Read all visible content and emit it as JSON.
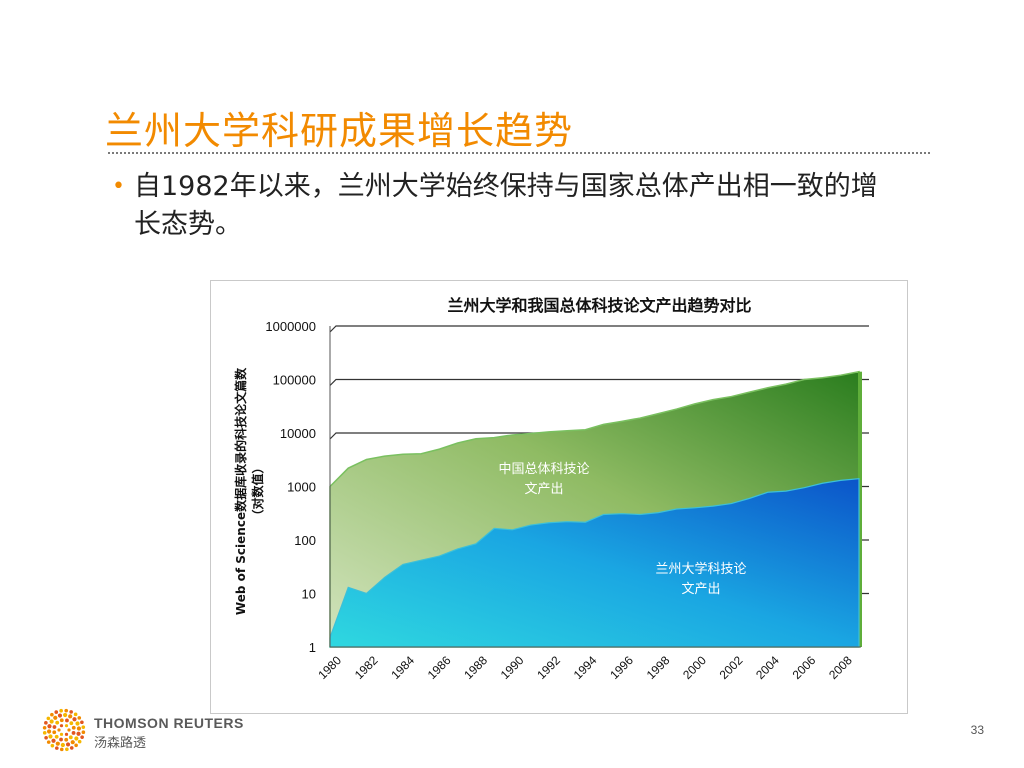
{
  "slide": {
    "title": "兰州大学科研成果增长趋势",
    "bullet_marker": "•",
    "bullet_text": "自1982年以来，兰州大学始终保持与国家总体产出相一致的增长态势。",
    "page_number": "33"
  },
  "logo": {
    "name_en": "THOMSON REUTERS",
    "name_cn": "汤森路透",
    "colors": [
      "#f28a00",
      "#e2561f",
      "#f5b700"
    ]
  },
  "chart_data": {
    "type": "area",
    "title": "兰州大学和我国总体科技论文产出趋势对比",
    "ylabel": "Web of Science数据库收录的科技论文篇数（对数值）",
    "y_scale": "log",
    "ylim": [
      1,
      1000000
    ],
    "y_ticks": [
      {
        "value": 1,
        "label": "1"
      },
      {
        "value": 10,
        "label": "10"
      },
      {
        "value": 100,
        "label": "100"
      },
      {
        "value": 1000,
        "label": "1000"
      },
      {
        "value": 10000,
        "label": "10000"
      },
      {
        "value": 100000,
        "label": "100000"
      },
      {
        "value": 1000000,
        "label": "1000000"
      }
    ],
    "x_tick_labels": [
      "1980",
      "1982",
      "1984",
      "1986",
      "1988",
      "1990",
      "1992",
      "1994",
      "1996",
      "1998",
      "2000",
      "2002",
      "2004",
      "2006",
      "2008"
    ],
    "x": [
      1980,
      1981,
      1982,
      1983,
      1984,
      1985,
      1986,
      1987,
      1988,
      1989,
      1990,
      1991,
      1992,
      1993,
      1994,
      1995,
      1996,
      1997,
      1998,
      1999,
      2000,
      2001,
      2002,
      2003,
      2004,
      2005,
      2006,
      2007,
      2008,
      2009
    ],
    "series": [
      {
        "label_lines": [
          "中国总体科技论",
          "文产出"
        ],
        "color": "#8dbf5e",
        "values": [
          1000,
          2200,
          3200,
          3700,
          4000,
          4100,
          5000,
          6500,
          7800,
          8200,
          9200,
          9800,
          10500,
          11000,
          11500,
          14500,
          16500,
          19000,
          23000,
          28000,
          35000,
          42000,
          48000,
          58000,
          70000,
          82000,
          100000,
          108000,
          120000,
          140000
        ]
      },
      {
        "label_lines": [
          "兰州大学科技论",
          "文产出"
        ],
        "color": "#1f9be0",
        "values": [
          1.5,
          13,
          10,
          20,
          35,
          42,
          50,
          68,
          85,
          165,
          155,
          190,
          210,
          220,
          215,
          300,
          310,
          300,
          325,
          380,
          400,
          430,
          480,
          600,
          780,
          820,
          950,
          1150,
          1300,
          1400
        ]
      }
    ]
  }
}
